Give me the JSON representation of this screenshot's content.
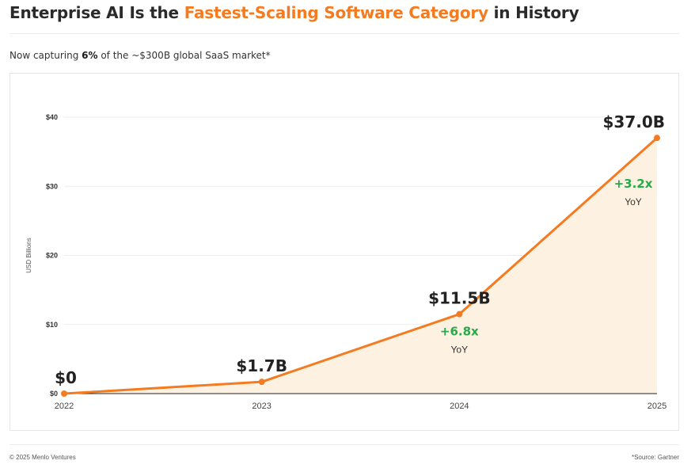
{
  "header": {
    "title_pre": "Enterprise AI Is the ",
    "title_accent": "Fastest-Scaling Software Category",
    "title_post": " in History",
    "subtitle_pre": "Now capturing ",
    "subtitle_bold": "6%",
    "subtitle_post": " of the ~$300B global SaaS market*"
  },
  "footer": {
    "copyright": "© 2025 Menlo Ventures",
    "source": "*Source: Gartner"
  },
  "colors": {
    "accent": "#f47b20",
    "area_fill": "#fdf1e2",
    "growth": "#2aa84a",
    "grid": "#eeeeee",
    "axis": "#222222"
  },
  "chart_data": {
    "type": "area",
    "title": "",
    "xlabel": "",
    "ylabel": "USD Billions",
    "x": [
      "2022",
      "2023",
      "2024",
      "2025"
    ],
    "series": [
      {
        "values": [
          0,
          1.7,
          11.5,
          37.0
        ]
      }
    ],
    "ylim": [
      0,
      40
    ],
    "yticks": [
      0,
      10,
      20,
      30,
      40
    ],
    "ytick_labels": [
      "$0",
      "$10",
      "$20",
      "$30",
      "$40"
    ],
    "value_labels": [
      "$0",
      "$1.7B",
      "$11.5B",
      "$37.0B"
    ],
    "growth_annotations": [
      {
        "x": "2024",
        "text": "+6.8x",
        "sub": "YoY"
      },
      {
        "x": "2025",
        "text": "+3.2x",
        "sub": "YoY"
      }
    ],
    "grid": true,
    "legend": "none"
  }
}
